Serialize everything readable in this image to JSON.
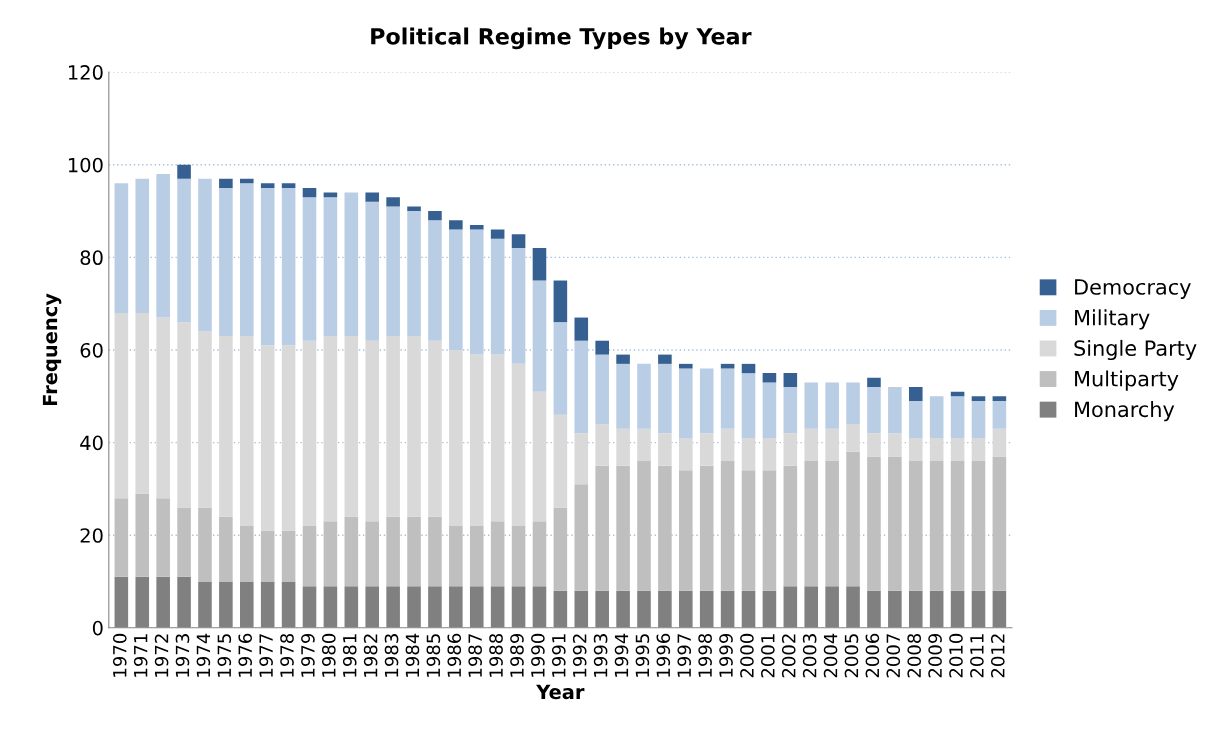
{
  "chart_data": {
    "type": "bar",
    "stacked": true,
    "title": "Political Regime Types by Year",
    "xlabel": "Year",
    "ylabel": "Frequency",
    "categories": [
      "1970",
      "1971",
      "1972",
      "1973",
      "1974",
      "1975",
      "1976",
      "1977",
      "1978",
      "1979",
      "1980",
      "1981",
      "1982",
      "1983",
      "1984",
      "1985",
      "1986",
      "1987",
      "1988",
      "1989",
      "1990",
      "1991",
      "1992",
      "1993",
      "1994",
      "1995",
      "1996",
      "1997",
      "1998",
      "1999",
      "2000",
      "2001",
      "2002",
      "2003",
      "2004",
      "2005",
      "2006",
      "2007",
      "2008",
      "2009",
      "2010",
      "2011",
      "2012"
    ],
    "series": [
      {
        "name": "Monarchy",
        "color": "#808080",
        "values": [
          11,
          11,
          11,
          11,
          10,
          10,
          10,
          10,
          10,
          9,
          9,
          9,
          9,
          9,
          9,
          9,
          9,
          9,
          9,
          9,
          9,
          8,
          8,
          8,
          8,
          8,
          8,
          8,
          8,
          8,
          8,
          8,
          9,
          9,
          9,
          9,
          8,
          8,
          8,
          8,
          8,
          8,
          8
        ]
      },
      {
        "name": "Multiparty",
        "color": "#bfbfbf",
        "values": [
          17,
          18,
          17,
          15,
          16,
          14,
          12,
          11,
          11,
          13,
          14,
          15,
          14,
          15,
          15,
          15,
          13,
          13,
          14,
          13,
          14,
          18,
          23,
          27,
          27,
          28,
          27,
          26,
          27,
          28,
          26,
          26,
          26,
          27,
          27,
          29,
          29,
          29,
          28,
          28,
          28,
          28,
          29
        ]
      },
      {
        "name": "Single Party",
        "color": "#d9d9d9",
        "values": [
          40,
          39,
          39,
          40,
          38,
          39,
          41,
          40,
          40,
          40,
          40,
          39,
          39,
          39,
          39,
          38,
          38,
          37,
          36,
          35,
          28,
          20,
          11,
          9,
          8,
          7,
          7,
          7,
          7,
          7,
          7,
          7,
          7,
          7,
          7,
          6,
          5,
          5,
          5,
          5,
          5,
          5,
          6
        ]
      },
      {
        "name": "Military",
        "color": "#b9cde5",
        "values": [
          28,
          29,
          31,
          31,
          33,
          32,
          33,
          34,
          34,
          31,
          30,
          31,
          30,
          28,
          27,
          26,
          26,
          27,
          25,
          25,
          24,
          20,
          20,
          15,
          14,
          14,
          15,
          15,
          14,
          13,
          14,
          12,
          10,
          10,
          10,
          9,
          10,
          10,
          8,
          9,
          9,
          8,
          6
        ]
      },
      {
        "name": "Democracy",
        "color": "#376092",
        "values": [
          0,
          0,
          0,
          3,
          0,
          2,
          1,
          1,
          1,
          2,
          1,
          0,
          2,
          2,
          1,
          2,
          2,
          1,
          2,
          3,
          7,
          9,
          5,
          3,
          2,
          0,
          2,
          1,
          0,
          1,
          2,
          2,
          3,
          0,
          0,
          0,
          2,
          0,
          3,
          0,
          1,
          1,
          1
        ]
      }
    ],
    "ylim": [
      0,
      120
    ],
    "yticks": [
      0,
      20,
      40,
      60,
      80,
      100,
      120
    ],
    "grid": "y",
    "legend": "right"
  }
}
